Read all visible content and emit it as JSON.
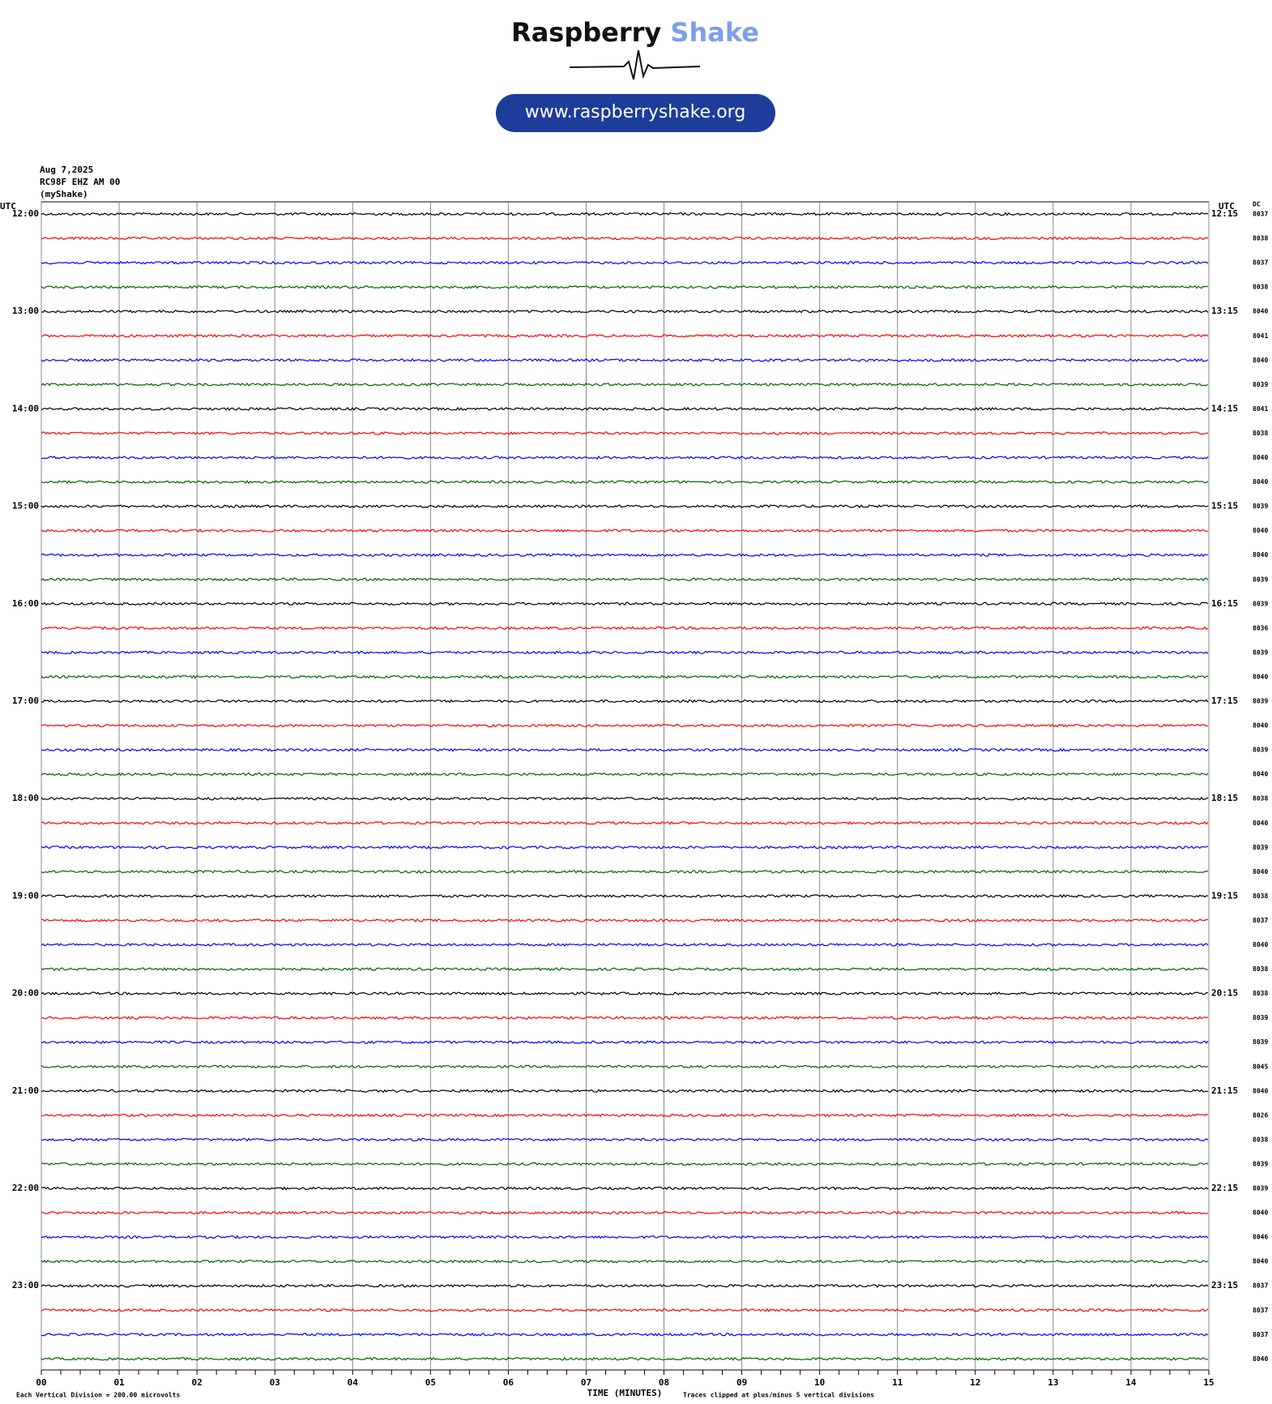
{
  "logo": {
    "brand": "Raspberry",
    "brand_accent": "Shake",
    "url": "www.raspberryshake.org"
  },
  "header": {
    "date": "Aug 7,2025",
    "station": "RC98F EHZ AM 00",
    "source": "(myShake)"
  },
  "chart_data": {
    "type": "helicorder",
    "left_axis_label": "UTC",
    "right_axis_label": "UTC",
    "dc_label": "DC",
    "row_labels_left": [
      "12:00",
      "13:00",
      "14:00",
      "15:00",
      "16:00",
      "17:00",
      "18:00",
      "19:00",
      "20:00",
      "21:00",
      "22:00",
      "23:00"
    ],
    "row_labels_right": [
      "12:15",
      "13:15",
      "14:15",
      "15:15",
      "16:15",
      "17:15",
      "18:15",
      "19:15",
      "20:15",
      "21:15",
      "22:15",
      "23:15"
    ],
    "dc_values": [
      8037,
      8038,
      8037,
      8038,
      8040,
      8041,
      8040,
      8039,
      8041,
      8038,
      8040,
      8040,
      8039,
      8040,
      8040,
      8039,
      8039,
      8036,
      8039,
      8040,
      8039,
      8040,
      8039,
      8040,
      8038,
      8040,
      8039,
      8040,
      8038,
      8037,
      8040,
      8038,
      8038,
      8039,
      8039,
      8045,
      8040,
      8026,
      8038,
      8039,
      8039,
      8040,
      8046,
      8040,
      8037,
      8037,
      8037,
      8040
    ],
    "trace_colors": [
      "#000000",
      "#ff0000",
      "#0000ff",
      "#006400"
    ],
    "xlim": [
      0,
      15
    ],
    "xticks": [
      {
        "value": 0,
        "label": "00"
      },
      {
        "value": 1,
        "label": "01"
      },
      {
        "value": 2,
        "label": "02"
      },
      {
        "value": 3,
        "label": "03"
      },
      {
        "value": 4,
        "label": "04"
      },
      {
        "value": 5,
        "label": "05"
      },
      {
        "value": 6,
        "label": "06"
      },
      {
        "value": 7,
        "label": "07"
      },
      {
        "value": 8,
        "label": "08"
      },
      {
        "value": 9,
        "label": "09"
      },
      {
        "value": 10,
        "label": "10"
      },
      {
        "value": 11,
        "label": "11"
      },
      {
        "value": 12,
        "label": "12"
      },
      {
        "value": 13,
        "label": "13"
      },
      {
        "value": 14,
        "label": "14"
      },
      {
        "value": 15,
        "label": "15"
      }
    ],
    "xlabel": "TIME (MINUTES)",
    "footer_left": "Each Vertical Division =  200.00 microvolts",
    "footer_right": "Traces clipped at plus/minus 5 vertical divisions"
  }
}
